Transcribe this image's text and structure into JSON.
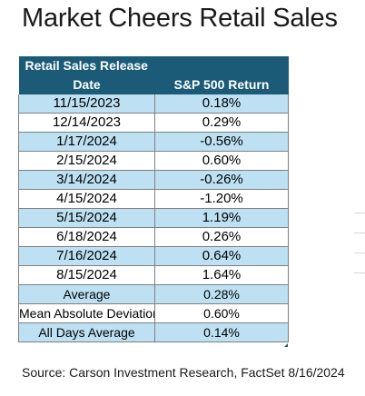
{
  "title": "Market Cheers Retail Sales",
  "source": "Source: Carson Investment Research, FactSet 8/16/2024",
  "chart_data": {
    "type": "table",
    "title": "Market Cheers Retail Sales",
    "columns": [
      "Retail Sales Release Date",
      "S&P 500 Return"
    ],
    "header": {
      "col1_line1": "Retail Sales Release",
      "col1_line2": "Date",
      "col2": "S&P 500 Return"
    },
    "rows": [
      {
        "label": "11/15/2023",
        "value": "0.18%"
      },
      {
        "label": "12/14/2023",
        "value": "0.29%"
      },
      {
        "label": "1/17/2024",
        "value": "-0.56%"
      },
      {
        "label": "2/15/2024",
        "value": "0.60%"
      },
      {
        "label": "3/14/2024",
        "value": "-0.26%"
      },
      {
        "label": "4/15/2024",
        "value": "-1.20%"
      },
      {
        "label": "5/15/2024",
        "value": "1.19%"
      },
      {
        "label": "6/18/2024",
        "value": "0.26%"
      },
      {
        "label": "7/16/2024",
        "value": "0.64%"
      },
      {
        "label": "8/15/2024",
        "value": "1.64%"
      }
    ],
    "summary": [
      {
        "label": "Average",
        "value": "0.28%"
      },
      {
        "label": "Mean Absolute Deviation",
        "value": "0.60%"
      },
      {
        "label": "All Days Average",
        "value": "0.14%"
      }
    ],
    "colors": {
      "header": "#1b5b77",
      "band": "#bde1f3",
      "plain": "#ffffff"
    }
  }
}
